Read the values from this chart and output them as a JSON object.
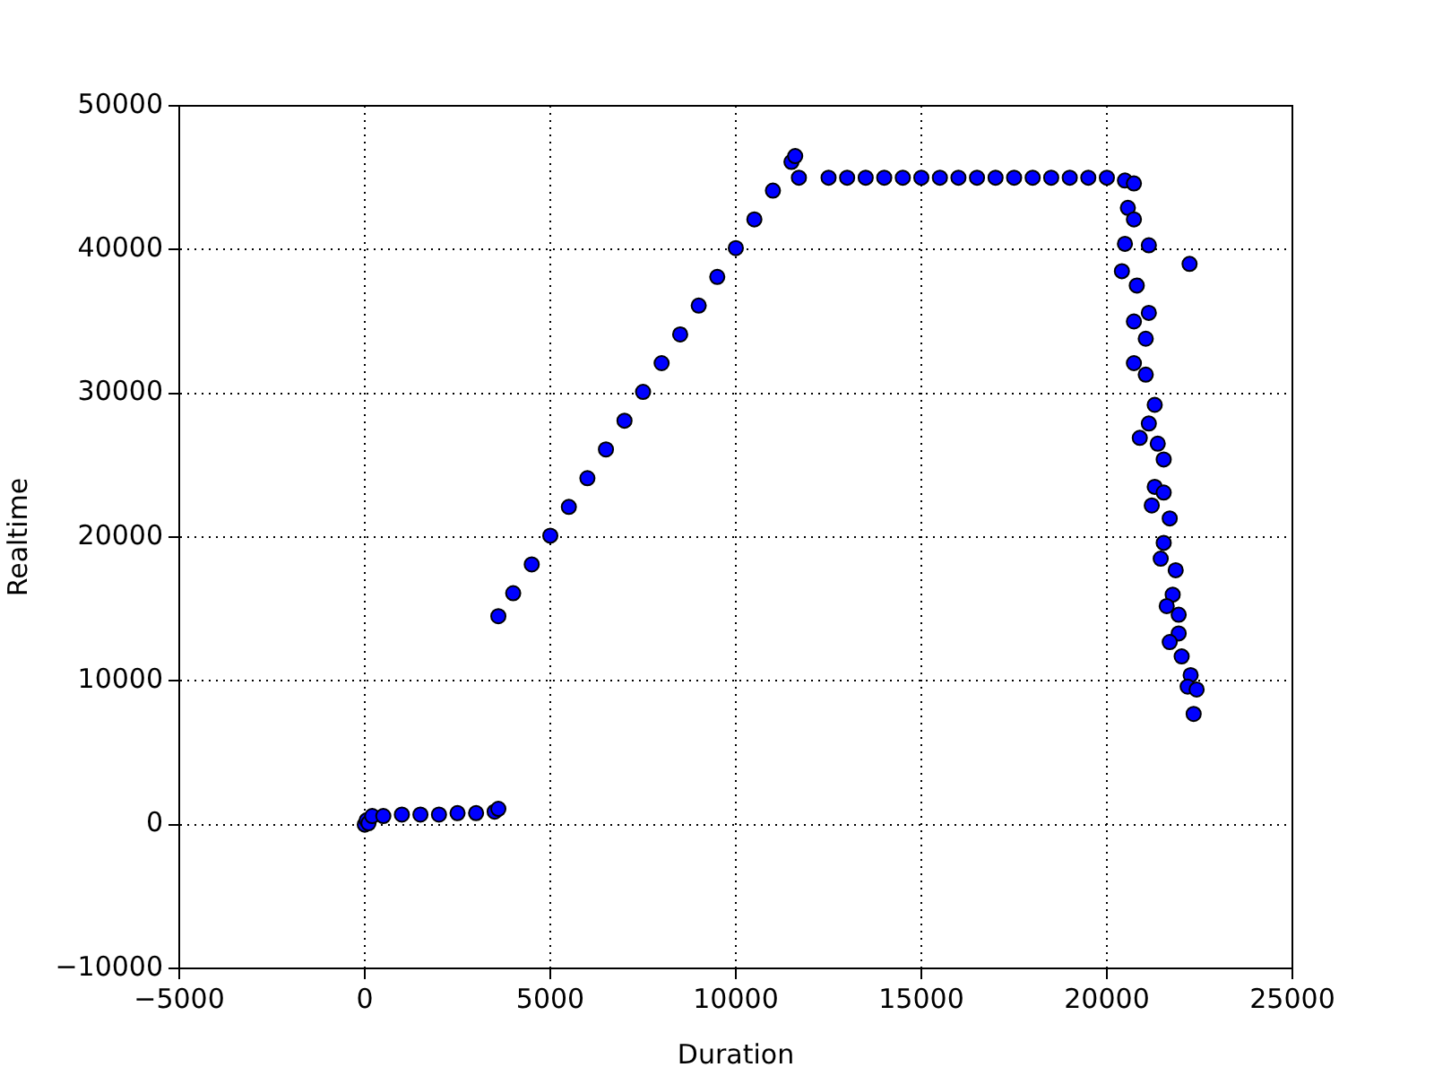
{
  "chart_data": {
    "type": "scatter",
    "xlabel": "Duration",
    "ylabel": "Realtime",
    "xlim": [
      -5000,
      25000
    ],
    "ylim": [
      -10000,
      50000
    ],
    "xticks": [
      -5000,
      0,
      5000,
      10000,
      15000,
      20000,
      25000
    ],
    "yticks": [
      -10000,
      0,
      10000,
      20000,
      30000,
      40000,
      50000
    ],
    "grid": true,
    "marker": "circle",
    "series": [
      {
        "color": "#0000ff",
        "x": [
          0,
          50,
          100,
          200,
          500,
          1000,
          1500,
          2000,
          2500,
          3000,
          3500,
          3600,
          3600,
          4000,
          4500,
          5000,
          5500,
          6000,
          6500,
          7000,
          7500,
          8000,
          8500,
          9000,
          9500,
          10000,
          10500,
          11000,
          11500,
          11600,
          11700,
          12500,
          13000,
          13500,
          14000,
          14500,
          15000,
          15500,
          16000,
          16500,
          17000,
          17500,
          18000,
          18500,
          19000,
          19500,
          20000,
          20487,
          20729,
          20566,
          20729,
          20487,
          21131,
          22229,
          20405,
          20806,
          21131,
          20729,
          21048,
          20729,
          21048,
          21290,
          21131,
          20887,
          21371,
          21532,
          21290,
          21532,
          21210,
          21694,
          21532,
          21451,
          21855,
          21774,
          21613,
          21935,
          21935,
          21694,
          22016,
          22258,
          22177,
          22419,
          22339
        ],
        "values": [
          0,
          300,
          100,
          600,
          600,
          700,
          700,
          700,
          800,
          800,
          900,
          1100,
          14500,
          16100,
          18100,
          20100,
          22100,
          24100,
          26100,
          28100,
          30100,
          32100,
          34100,
          36100,
          38100,
          40100,
          42100,
          44100,
          46100,
          46500,
          45000,
          45000,
          45000,
          45000,
          45000,
          45000,
          45000,
          45000,
          45000,
          45000,
          45000,
          45000,
          45000,
          45000,
          45000,
          45000,
          45000,
          44800,
          44600,
          42900,
          42100,
          40400,
          40300,
          39000,
          38500,
          37500,
          35600,
          35000,
          33800,
          32100,
          31300,
          29200,
          27900,
          26900,
          26500,
          25400,
          23500,
          23100,
          22200,
          21300,
          19600,
          18500,
          17700,
          16000,
          15200,
          14600,
          13300,
          12700,
          11700,
          10400,
          9600,
          9400,
          7700
        ]
      }
    ]
  }
}
